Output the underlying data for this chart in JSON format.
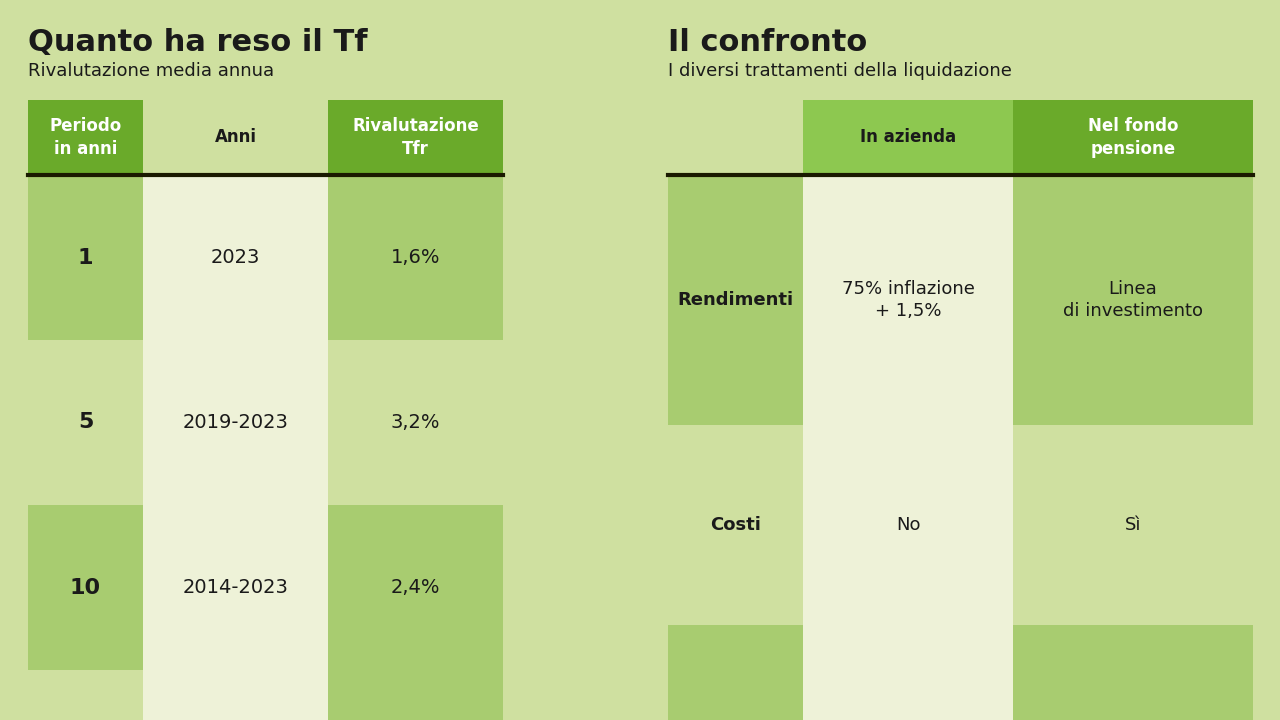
{
  "bg_color": "#cfe0a0",
  "title1": "Quanto ha reso il Tf",
  "subtitle1": "Rivalutazione media annua",
  "title2": "Il confronto",
  "subtitle2": "I diversi trattamenti della liquidazione",
  "header_green_dark": "#6aaa2a",
  "header_green_medium": "#8dc850",
  "row_green_dark": "#a8cc70",
  "row_green_light": "#cfe0a0",
  "row_cream": "#eef2d8",
  "divider_color": "#1a1a00",
  "table1_headers": [
    "Periodo\nin anni",
    "Anni",
    "Rivalutazione\nTfr"
  ],
  "table2_headers": [
    "",
    "In azienda",
    "Nel fondo\npensione"
  ],
  "table1_rows": [
    [
      "1",
      "2023",
      "1,6%"
    ],
    [
      "5",
      "2019-2023",
      "3,2%"
    ],
    [
      "10",
      "2014-2023",
      "2,4%"
    ]
  ],
  "table2_rows": [
    [
      "Rendimenti",
      "75% inflazione\n+ 1,5%",
      "Linea\ndi investimento"
    ],
    [
      "Costi",
      "No",
      "Sì"
    ]
  ],
  "fig_w": 12.8,
  "fig_h": 7.2,
  "dpi": 100
}
